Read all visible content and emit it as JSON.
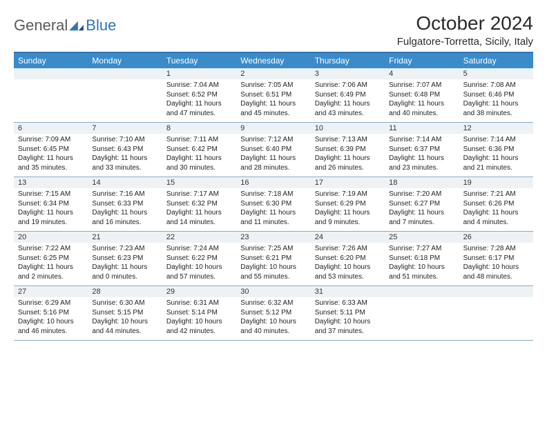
{
  "logo": {
    "general": "General",
    "blue": "Blue"
  },
  "title": "October 2024",
  "location": "Fulgatore-Torretta, Sicily, Italy",
  "colors": {
    "header_bg": "#3b8bc9",
    "border_top": "#2e75b6",
    "cell_border": "#8aa9c4",
    "daynum_bg": "#eef2f5",
    "logo_gray": "#5a5a5a",
    "logo_blue": "#2e75b6"
  },
  "day_names": [
    "Sunday",
    "Monday",
    "Tuesday",
    "Wednesday",
    "Thursday",
    "Friday",
    "Saturday"
  ],
  "first_weekday": 2,
  "days": [
    {
      "n": 1,
      "sr": "7:04 AM",
      "ss": "6:52 PM",
      "dl": "11 hours and 47 minutes."
    },
    {
      "n": 2,
      "sr": "7:05 AM",
      "ss": "6:51 PM",
      "dl": "11 hours and 45 minutes."
    },
    {
      "n": 3,
      "sr": "7:06 AM",
      "ss": "6:49 PM",
      "dl": "11 hours and 43 minutes."
    },
    {
      "n": 4,
      "sr": "7:07 AM",
      "ss": "6:48 PM",
      "dl": "11 hours and 40 minutes."
    },
    {
      "n": 5,
      "sr": "7:08 AM",
      "ss": "6:46 PM",
      "dl": "11 hours and 38 minutes."
    },
    {
      "n": 6,
      "sr": "7:09 AM",
      "ss": "6:45 PM",
      "dl": "11 hours and 35 minutes."
    },
    {
      "n": 7,
      "sr": "7:10 AM",
      "ss": "6:43 PM",
      "dl": "11 hours and 33 minutes."
    },
    {
      "n": 8,
      "sr": "7:11 AM",
      "ss": "6:42 PM",
      "dl": "11 hours and 30 minutes."
    },
    {
      "n": 9,
      "sr": "7:12 AM",
      "ss": "6:40 PM",
      "dl": "11 hours and 28 minutes."
    },
    {
      "n": 10,
      "sr": "7:13 AM",
      "ss": "6:39 PM",
      "dl": "11 hours and 26 minutes."
    },
    {
      "n": 11,
      "sr": "7:14 AM",
      "ss": "6:37 PM",
      "dl": "11 hours and 23 minutes."
    },
    {
      "n": 12,
      "sr": "7:14 AM",
      "ss": "6:36 PM",
      "dl": "11 hours and 21 minutes."
    },
    {
      "n": 13,
      "sr": "7:15 AM",
      "ss": "6:34 PM",
      "dl": "11 hours and 19 minutes."
    },
    {
      "n": 14,
      "sr": "7:16 AM",
      "ss": "6:33 PM",
      "dl": "11 hours and 16 minutes."
    },
    {
      "n": 15,
      "sr": "7:17 AM",
      "ss": "6:32 PM",
      "dl": "11 hours and 14 minutes."
    },
    {
      "n": 16,
      "sr": "7:18 AM",
      "ss": "6:30 PM",
      "dl": "11 hours and 11 minutes."
    },
    {
      "n": 17,
      "sr": "7:19 AM",
      "ss": "6:29 PM",
      "dl": "11 hours and 9 minutes."
    },
    {
      "n": 18,
      "sr": "7:20 AM",
      "ss": "6:27 PM",
      "dl": "11 hours and 7 minutes."
    },
    {
      "n": 19,
      "sr": "7:21 AM",
      "ss": "6:26 PM",
      "dl": "11 hours and 4 minutes."
    },
    {
      "n": 20,
      "sr": "7:22 AM",
      "ss": "6:25 PM",
      "dl": "11 hours and 2 minutes."
    },
    {
      "n": 21,
      "sr": "7:23 AM",
      "ss": "6:23 PM",
      "dl": "11 hours and 0 minutes."
    },
    {
      "n": 22,
      "sr": "7:24 AM",
      "ss": "6:22 PM",
      "dl": "10 hours and 57 minutes."
    },
    {
      "n": 23,
      "sr": "7:25 AM",
      "ss": "6:21 PM",
      "dl": "10 hours and 55 minutes."
    },
    {
      "n": 24,
      "sr": "7:26 AM",
      "ss": "6:20 PM",
      "dl": "10 hours and 53 minutes."
    },
    {
      "n": 25,
      "sr": "7:27 AM",
      "ss": "6:18 PM",
      "dl": "10 hours and 51 minutes."
    },
    {
      "n": 26,
      "sr": "7:28 AM",
      "ss": "6:17 PM",
      "dl": "10 hours and 48 minutes."
    },
    {
      "n": 27,
      "sr": "6:29 AM",
      "ss": "5:16 PM",
      "dl": "10 hours and 46 minutes."
    },
    {
      "n": 28,
      "sr": "6:30 AM",
      "ss": "5:15 PM",
      "dl": "10 hours and 44 minutes."
    },
    {
      "n": 29,
      "sr": "6:31 AM",
      "ss": "5:14 PM",
      "dl": "10 hours and 42 minutes."
    },
    {
      "n": 30,
      "sr": "6:32 AM",
      "ss": "5:12 PM",
      "dl": "10 hours and 40 minutes."
    },
    {
      "n": 31,
      "sr": "6:33 AM",
      "ss": "5:11 PM",
      "dl": "10 hours and 37 minutes."
    }
  ],
  "labels": {
    "sunrise": "Sunrise:",
    "sunset": "Sunset:",
    "daylight": "Daylight:"
  }
}
